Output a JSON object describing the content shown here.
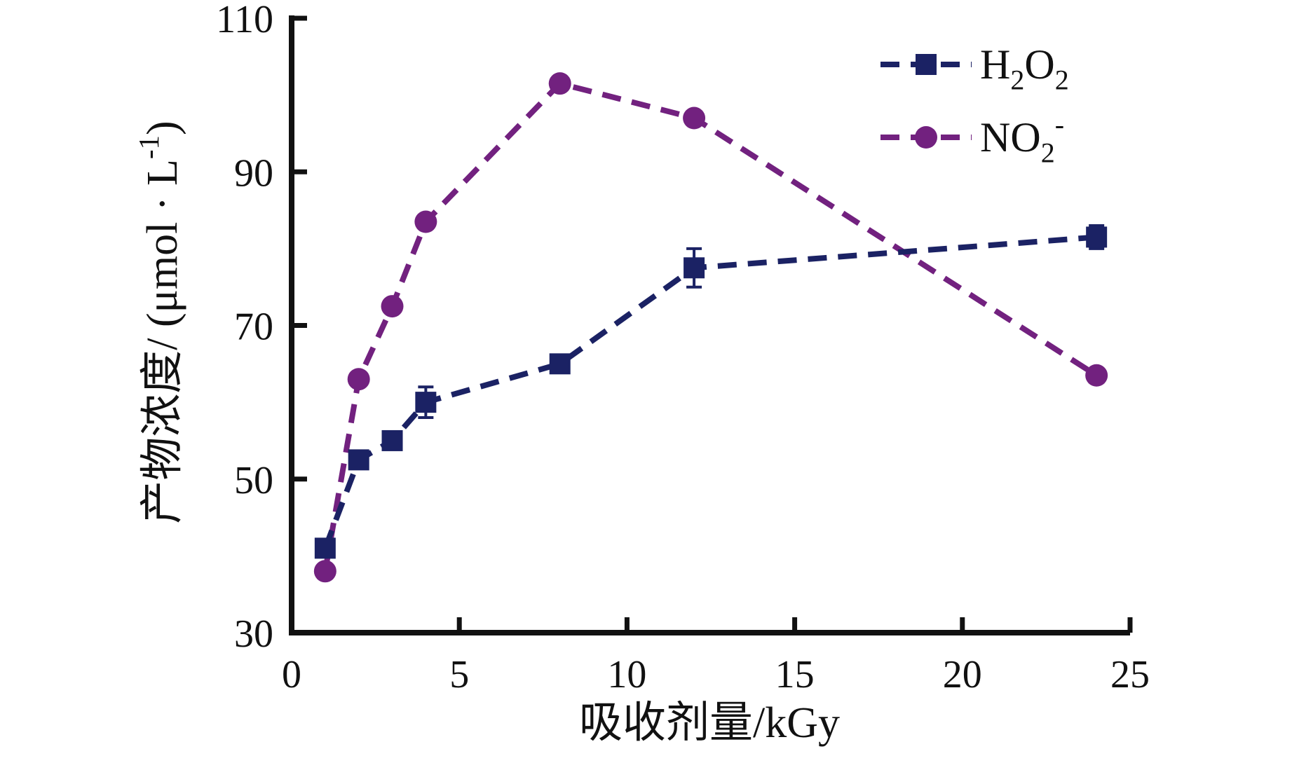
{
  "figure": {
    "background": "#ffffff"
  },
  "chart_data": {
    "type": "line",
    "title": "",
    "xlabel": "吸收剂量/kGy",
    "ylabel": "产物浓度/ (μmol · L⁻¹)",
    "ylabel_parts": [
      {
        "t": "产物浓度/ (μmol · L"
      },
      {
        "t": "-1",
        "s": "sup"
      },
      {
        "t": ")"
      }
    ],
    "xlim": [
      0,
      25
    ],
    "ylim": [
      30,
      110
    ],
    "x_ticks": [
      0,
      5,
      10,
      15,
      20,
      25
    ],
    "y_ticks": [
      30,
      50,
      70,
      90,
      110
    ],
    "grid": false,
    "legend_position": "top-right",
    "axis_color": "#111111",
    "text_color": "#111111",
    "x": [
      1,
      2,
      3,
      4,
      8,
      12,
      24
    ],
    "series": [
      {
        "name": "H2O2",
        "label_parts": [
          {
            "t": "H"
          },
          {
            "t": "2",
            "s": "sub"
          },
          {
            "t": "O"
          },
          {
            "t": "2",
            "s": "sub"
          }
        ],
        "marker": "square",
        "linestyle": "dashed",
        "color": "#1b2264",
        "values": [
          41,
          52.5,
          55,
          60,
          65,
          77.5,
          81.5
        ],
        "error": [
          0,
          0,
          0,
          2,
          0,
          2.5,
          1.5
        ]
      },
      {
        "name": "NO2-",
        "label_parts": [
          {
            "t": "N"
          },
          {
            "t": "O"
          },
          {
            "t": "2",
            "s": "sub"
          },
          {
            "t": "-",
            "s": "sup"
          }
        ],
        "marker": "circle",
        "linestyle": "dashed",
        "color": "#72217f",
        "values": [
          38,
          63,
          72.5,
          83.5,
          101.5,
          97,
          63.5
        ],
        "error": [
          0,
          0,
          0,
          0,
          0,
          0,
          0
        ]
      }
    ]
  }
}
